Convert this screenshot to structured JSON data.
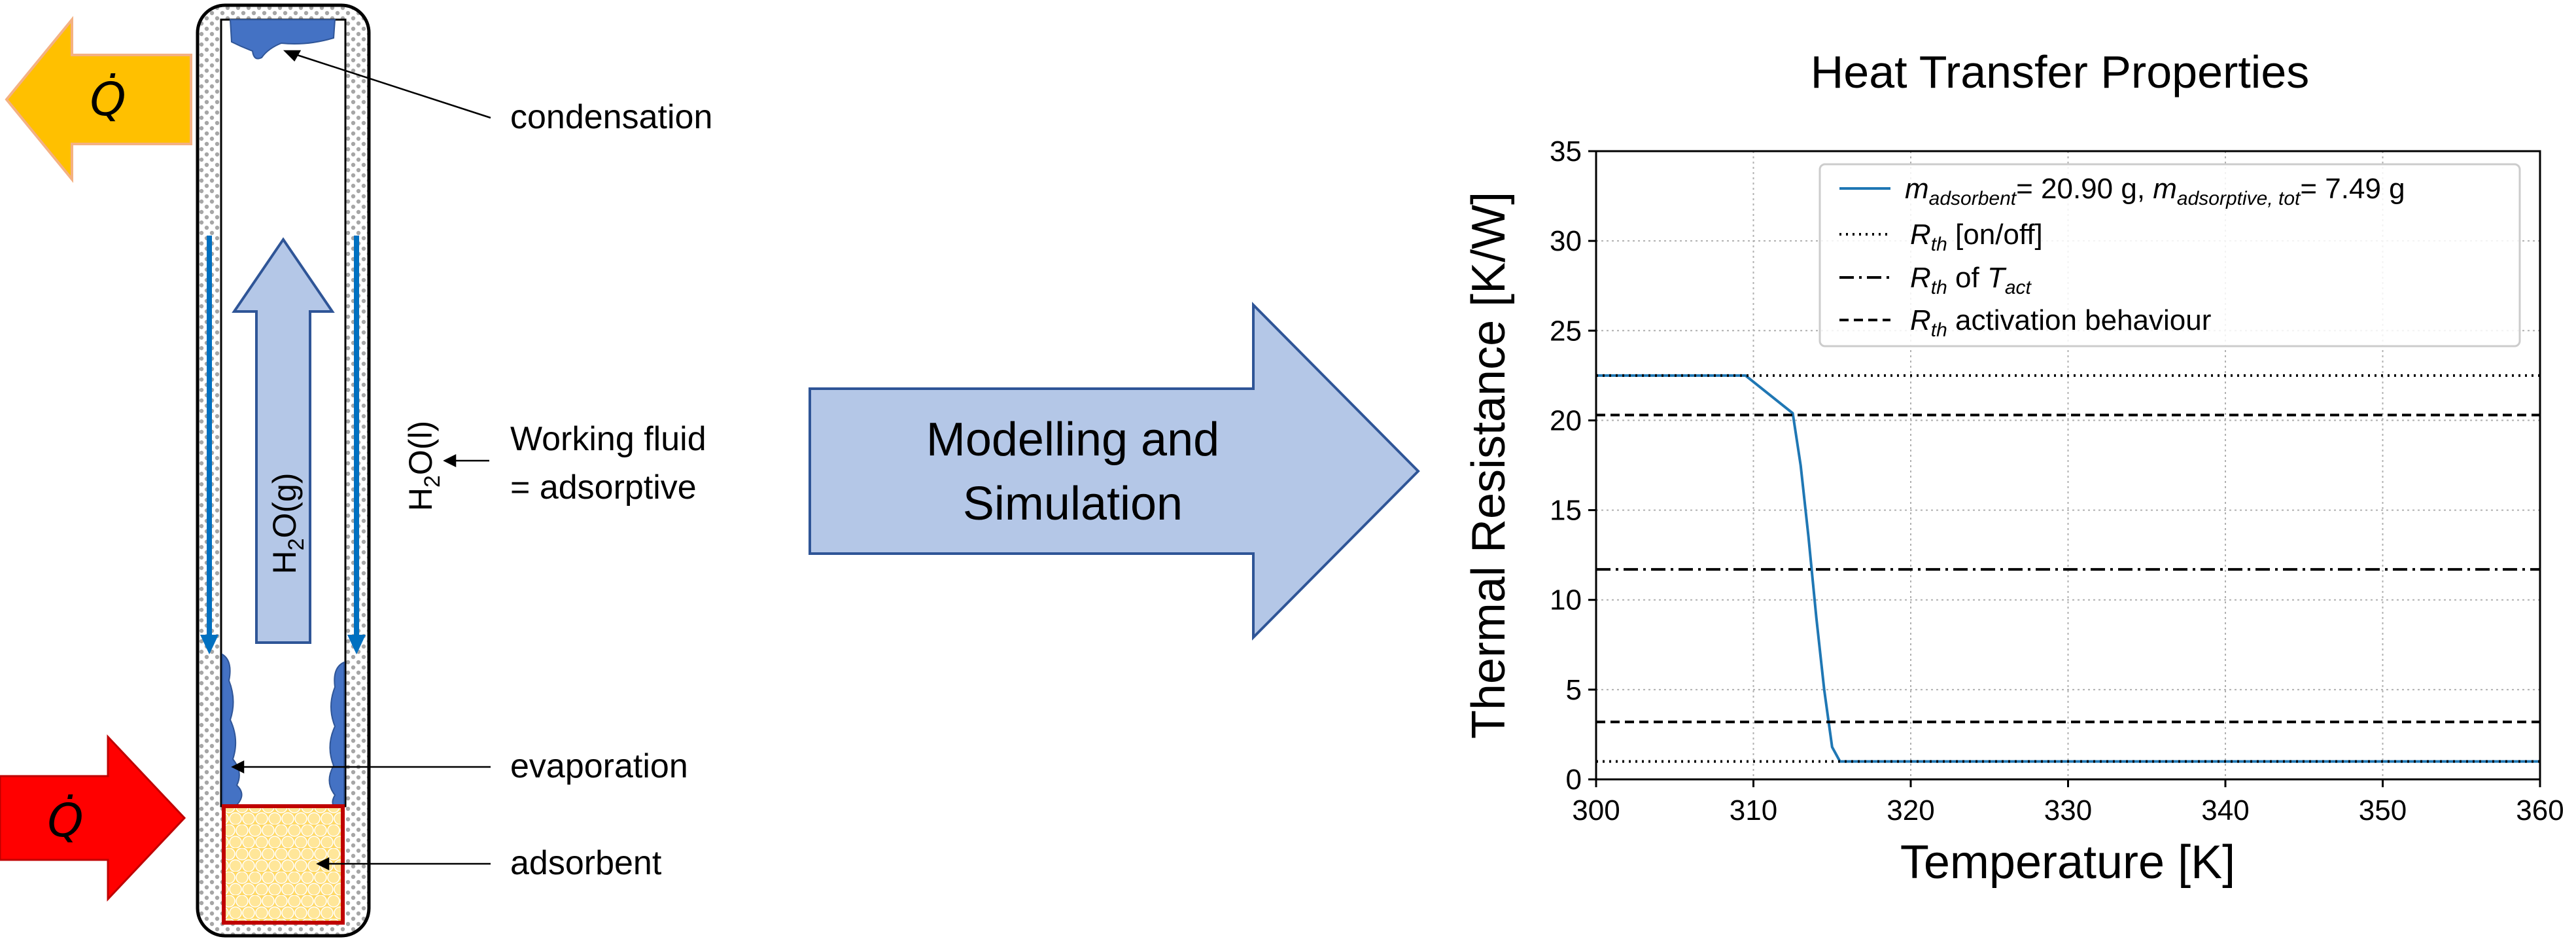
{
  "diagram": {
    "heat_out_label": "Q̇",
    "heat_in_label": "Q̇",
    "labels": {
      "condensation": "condensation",
      "working_fluid_line1": "Working fluid",
      "working_fluid_line2": "= adsorptive",
      "evaporation": "evaporation",
      "adsorbent": "adsorbent"
    },
    "vapor_base": "H",
    "vapor_sub": "2",
    "vapor_tail": "O(g)",
    "liquid_base": "H",
    "liquid_sub": "2",
    "liquid_tail": "O(l)",
    "process_line1": "Modelling and",
    "process_line2": "Simulation",
    "colors": {
      "heat_out": "#ffc000",
      "heat_in": "#ff0000",
      "flow_arrow": "#b4c7e7",
      "liquid": "#4472c4",
      "adsorbent": "#ffd966",
      "wall_outline": "#000000"
    }
  },
  "chart_data": {
    "type": "line",
    "title": "Heat Transfer Properties",
    "xlabel": "Temperature [K]",
    "ylabel": "Thermal Resistance [K/W]",
    "xlim": [
      300,
      360
    ],
    "ylim": [
      0,
      35
    ],
    "xticks": [
      300,
      310,
      320,
      330,
      340,
      350,
      360
    ],
    "yticks": [
      0,
      5,
      10,
      15,
      20,
      25,
      30,
      35
    ],
    "grid": true,
    "legend_position": "top-right",
    "series": [
      {
        "name_base": "m",
        "name_sub": "adsorbent",
        "name_mid": "= 20.90 g, ",
        "name_base2": "m",
        "name_sub2": "adsorptive, tot",
        "name_tail": "= 7.49 g",
        "style": "solid",
        "color": "#1f77b4",
        "x": [
          300,
          309.5,
          312.5,
          313,
          313.5,
          314,
          314.5,
          315,
          315.5,
          316,
          320,
          330,
          340,
          350,
          360
        ],
        "y": [
          22.5,
          22.5,
          20.4,
          17.5,
          13.5,
          9.0,
          5.0,
          1.8,
          1.0,
          1.0,
          1.0,
          1.0,
          1.0,
          1.0,
          1.0
        ]
      },
      {
        "name_base": "R",
        "name_sub": "th",
        "name_tail": " [on/off]",
        "style": "dotted",
        "color": "#000000",
        "y_levels": [
          22.5,
          1.0
        ]
      },
      {
        "name_base": "R",
        "name_sub": "th",
        "name_mid": " of ",
        "name_base2": "T",
        "name_sub2": "act",
        "style": "dashdot",
        "color": "#000000",
        "y_levels": [
          11.7
        ]
      },
      {
        "name_base": "R",
        "name_sub": "th",
        "name_tail": " activation behaviour",
        "style": "dashed",
        "color": "#000000",
        "y_levels": [
          20.3,
          3.2
        ]
      }
    ]
  }
}
